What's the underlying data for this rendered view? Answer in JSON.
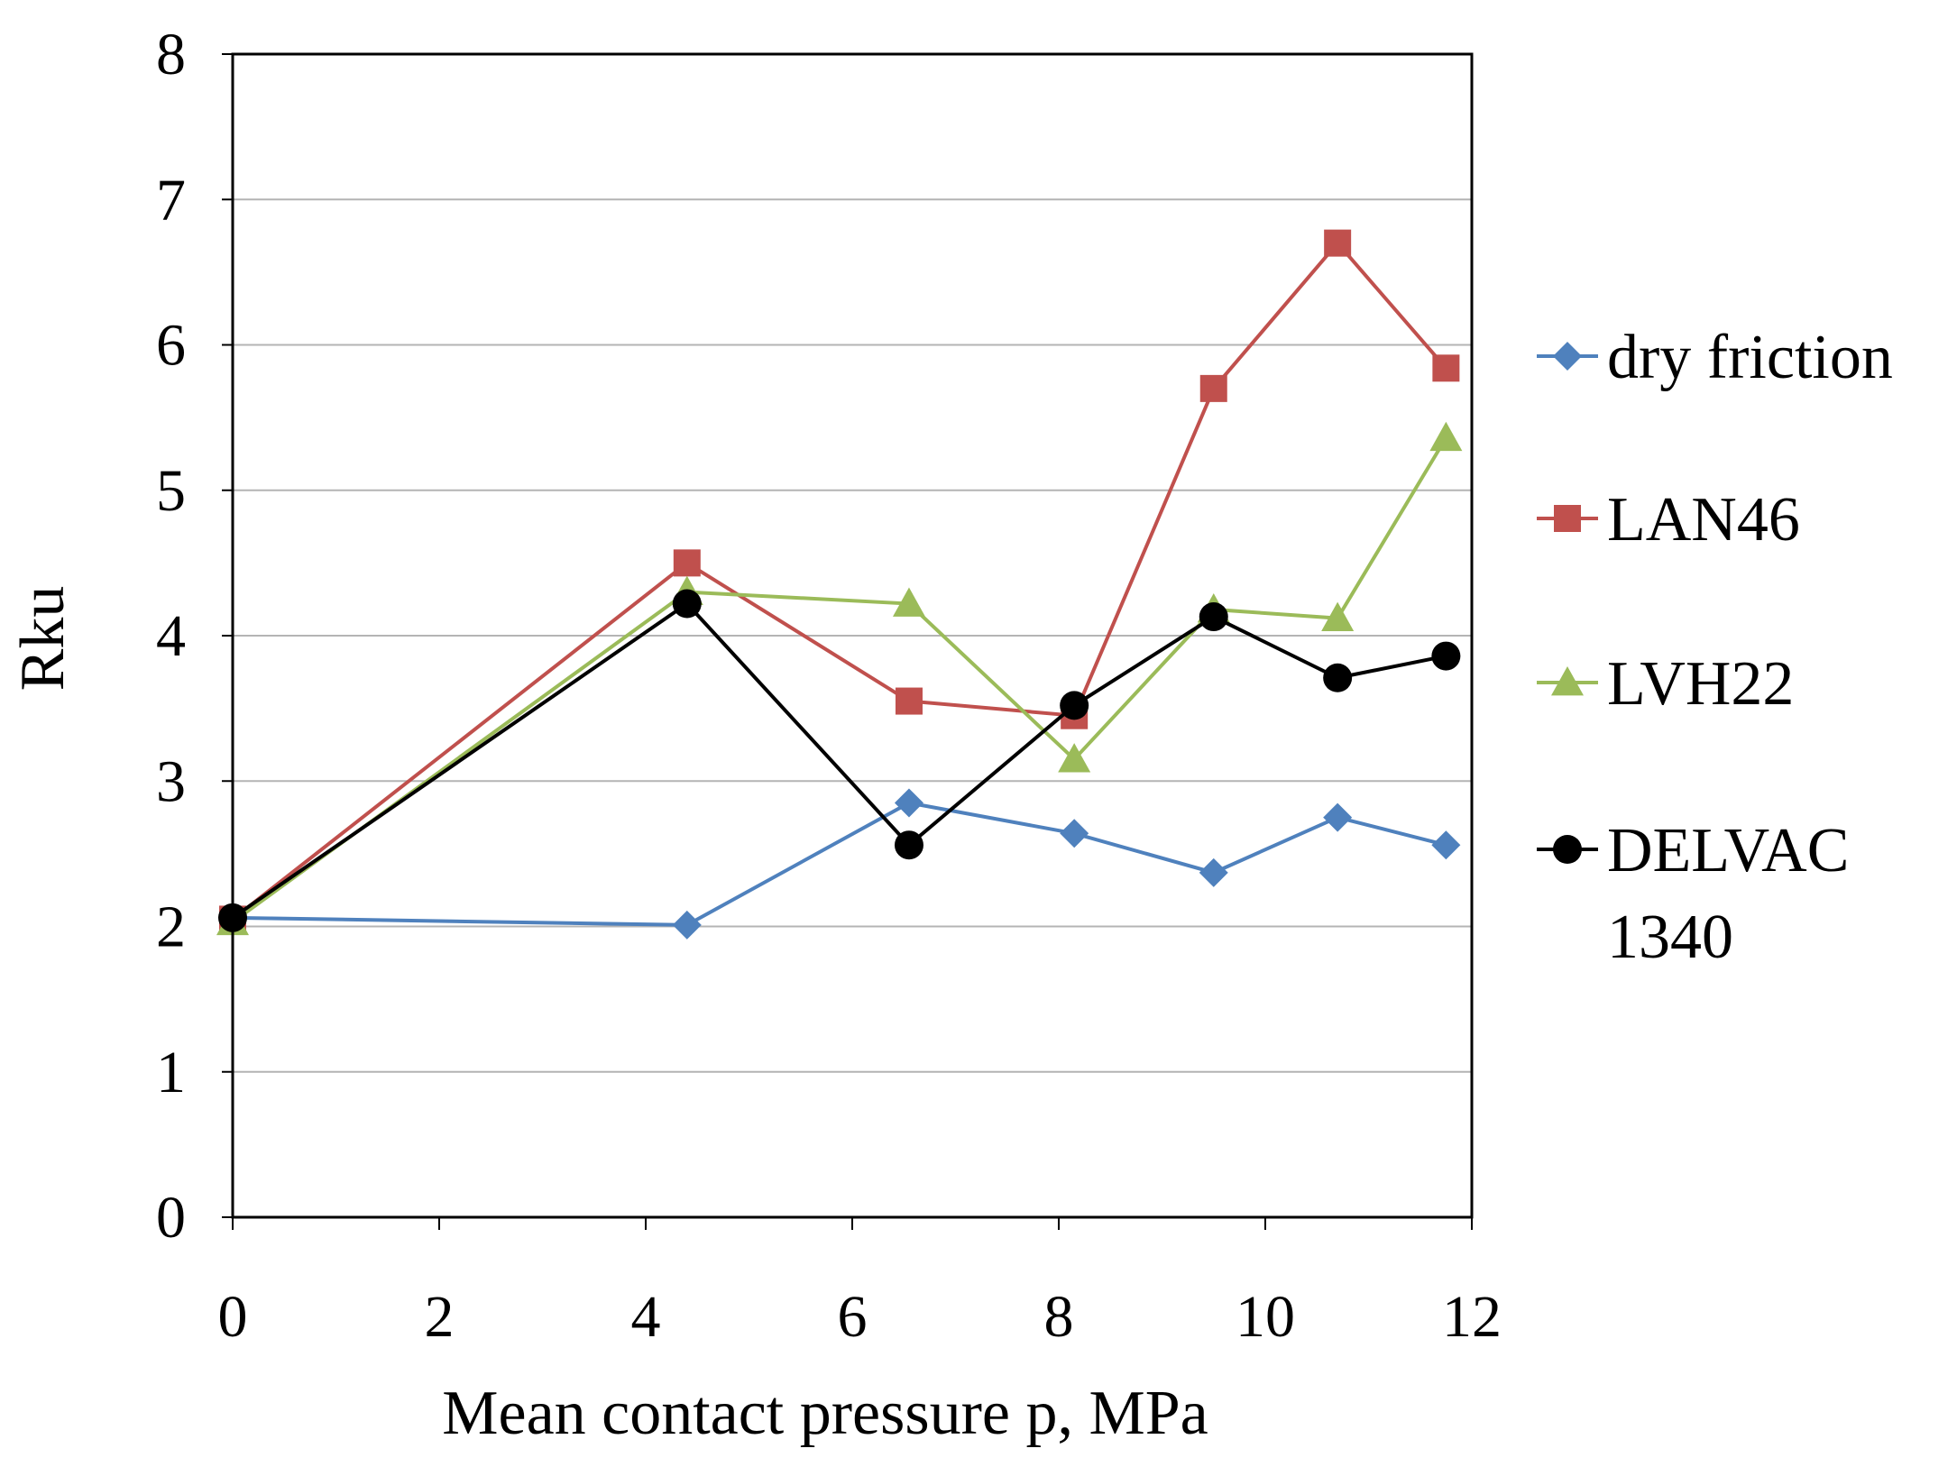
{
  "chart_data": {
    "type": "line",
    "title": "",
    "xlabel": "Mean contact pressure p, MPa",
    "ylabel": "Rku",
    "xlim": [
      0,
      12
    ],
    "ylim": [
      0,
      8
    ],
    "xticks": [
      "0",
      "2",
      "4",
      "6",
      "8",
      "10",
      "12"
    ],
    "yticks": [
      "0",
      "1",
      "2",
      "3",
      "4",
      "5",
      "6",
      "7",
      "8"
    ],
    "grid": "horizontal",
    "legend_position": "right",
    "series": [
      {
        "name": "dry friction",
        "color": "#4F81BD",
        "marker": "diamond",
        "x": [
          0,
          4.4,
          6.55,
          8.15,
          9.5,
          10.7,
          11.75
        ],
        "values": [
          2.06,
          2.01,
          2.85,
          2.64,
          2.37,
          2.75,
          2.56
        ]
      },
      {
        "name": "LAN46",
        "color": "#C0504D",
        "marker": "square",
        "x": [
          0,
          4.4,
          6.55,
          8.15,
          9.5,
          10.7,
          11.75
        ],
        "values": [
          2.05,
          4.5,
          3.55,
          3.45,
          5.7,
          6.7,
          5.84
        ]
      },
      {
        "name": "LVH22",
        "color": "#9BBB59",
        "marker": "triangle",
        "x": [
          0,
          4.4,
          6.55,
          8.15,
          9.5,
          10.7,
          11.75
        ],
        "values": [
          2.03,
          4.3,
          4.22,
          3.15,
          4.18,
          4.12,
          5.36
        ]
      },
      {
        "name": "DELVAC 1340",
        "name_lines": [
          "DELVAC",
          "1340"
        ],
        "color": "#000000",
        "marker": "circle",
        "x": [
          0,
          4.4,
          6.55,
          8.15,
          9.5,
          10.7,
          11.75
        ],
        "values": [
          2.06,
          4.22,
          2.56,
          3.52,
          4.13,
          3.71,
          3.86
        ]
      }
    ]
  }
}
